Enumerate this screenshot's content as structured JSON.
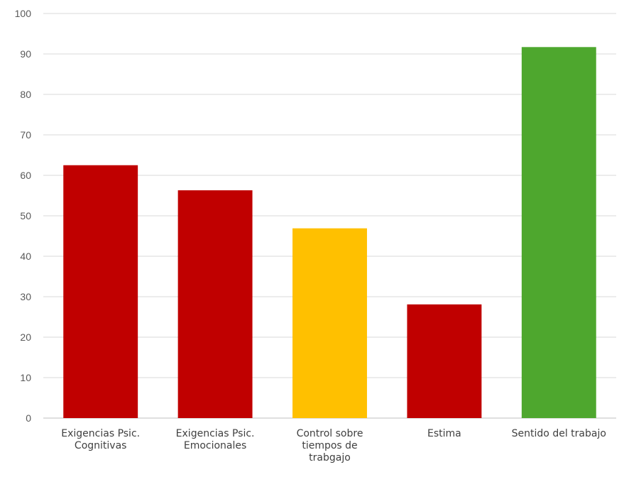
{
  "chart_data": {
    "type": "bar",
    "title": "",
    "xlabel": "",
    "ylabel": "",
    "ylim": [
      0,
      100
    ],
    "yticks": [
      0,
      10,
      20,
      30,
      40,
      50,
      60,
      70,
      80,
      90,
      100
    ],
    "grid": true,
    "legend": "none",
    "categories": [
      [
        "Exigencias Psic.",
        "Cognitivas"
      ],
      [
        "Exigencias Psic.",
        "Emocionales"
      ],
      [
        "Control sobre",
        "tiempos de",
        "trabgajo"
      ],
      [
        "Estima"
      ],
      [
        "Sentido del trabajo"
      ]
    ],
    "values": [
      62.5,
      56.3,
      46.9,
      28.1,
      91.7
    ],
    "colors": [
      "#C00000",
      "#C00000",
      "#FFC000",
      "#C00000",
      "#4EA72E"
    ]
  },
  "style": {
    "gridline_color": "#d9d9d9",
    "axis_color": "#bfbfbf"
  }
}
